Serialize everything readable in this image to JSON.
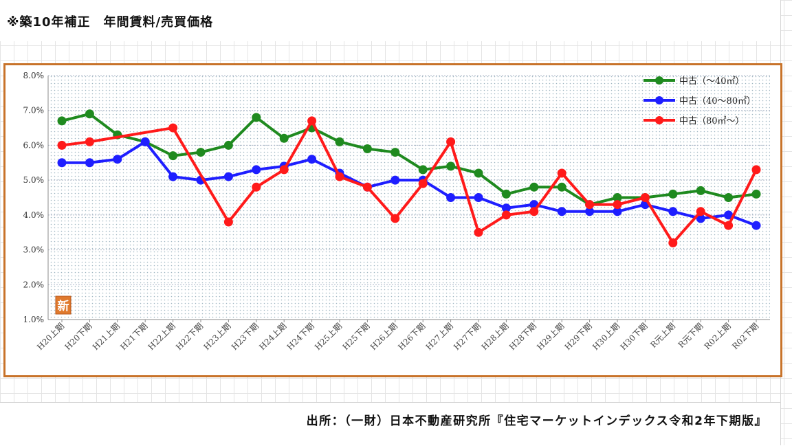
{
  "page": {
    "title": "※築10年補正　年間賃料/売買価格",
    "source": "出所：（一財）日本不動産研究所『住宅マーケットインデックス令和2年下期版』",
    "badge": "新"
  },
  "colors": {
    "frame": "#c8732a",
    "series_green": "#1f8a1f",
    "series_blue": "#1e1eff",
    "series_red": "#ff1a1a",
    "badge": "#e07a2e"
  },
  "chart_data": {
    "type": "line",
    "ylim": [
      1.0,
      8.0
    ],
    "y_ticks": [
      "1.0%",
      "2.0%",
      "3.0%",
      "4.0%",
      "5.0%",
      "6.0%",
      "7.0%",
      "8.0%"
    ],
    "grid": true,
    "legend_position": "top-right",
    "categories": [
      "H20上期",
      "H20下期",
      "H21上期",
      "H21下期",
      "H22上期",
      "H22下期",
      "H23上期",
      "H23下期",
      "H24上期",
      "H24下期",
      "H25上期",
      "H25下期",
      "H26上期",
      "H26下期",
      "H27上期",
      "H27下期",
      "H28上期",
      "H28下期",
      "H29上期",
      "H29下期",
      "H30上期",
      "H30下期",
      "R元上期",
      "R元下期",
      "R02上期",
      "R02下期"
    ],
    "series": [
      {
        "name": "中古（～40㎡）",
        "color": "#1f8a1f",
        "values": [
          6.7,
          6.9,
          6.3,
          6.1,
          5.7,
          5.8,
          6.0,
          6.8,
          6.2,
          6.5,
          6.1,
          5.9,
          5.8,
          5.3,
          5.4,
          5.2,
          4.6,
          4.8,
          4.8,
          4.3,
          4.5,
          4.5,
          4.6,
          4.7,
          4.5,
          4.6
        ]
      },
      {
        "name": "中古（40～80㎡）",
        "color": "#1e1eff",
        "values": [
          5.5,
          5.5,
          5.6,
          6.1,
          5.1,
          5.0,
          5.1,
          5.3,
          5.4,
          5.6,
          5.2,
          4.8,
          5.0,
          5.0,
          4.5,
          4.5,
          4.2,
          4.3,
          4.1,
          4.1,
          4.1,
          4.3,
          4.1,
          3.9,
          4.0,
          3.7
        ]
      },
      {
        "name": "中古（80㎡～）",
        "color": "#ff1a1a",
        "values": [
          6.0,
          6.1,
          null,
          null,
          6.5,
          null,
          3.8,
          4.8,
          5.3,
          6.7,
          5.1,
          4.8,
          3.9,
          4.9,
          6.1,
          3.5,
          4.0,
          4.1,
          5.2,
          4.3,
          4.3,
          4.5,
          3.2,
          4.1,
          3.7,
          5.3
        ]
      }
    ]
  }
}
